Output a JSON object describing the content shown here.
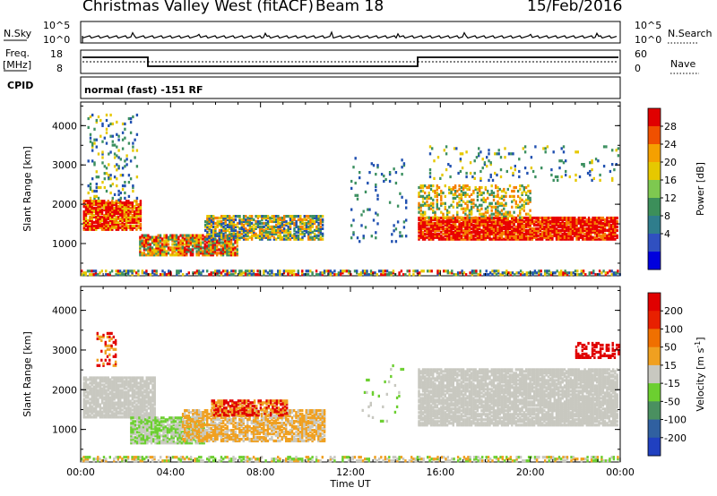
{
  "header": {
    "station": "Christmas Valley West (fitACF)",
    "beam": "Beam 18",
    "date": "15/Feb/2016"
  },
  "top_panels": {
    "nsky_label": "N.Sky",
    "nsearch_label": "N.Search",
    "nsky_ticks": [
      "10^5",
      "10^0"
    ],
    "nsky_right_ticks": [
      "10^5",
      "10^0"
    ],
    "freq_label_1": "Freq.",
    "freq_label_2": "[MHz]",
    "freq_ticks": [
      "18",
      "8"
    ],
    "nave_label": "Nave",
    "nave_ticks": [
      "60",
      "0"
    ],
    "cpid_label": "CPID",
    "cpid_text": "normal (fast) -151 RF"
  },
  "chart_data": [
    {
      "type": "heatmap",
      "name": "power",
      "ylabel": "Slant Range [km]",
      "xlabel": "",
      "yticks": [
        "4000",
        "3000",
        "2000",
        "1000"
      ],
      "ylim": [
        180,
        4600
      ],
      "colorbar_label": "Power [dB]",
      "colorbar_ticks": [
        "28",
        "24",
        "20",
        "16",
        "12",
        "8",
        "4"
      ],
      "colorbar_colors": [
        "#0000dd",
        "#3050c0",
        "#2f7d8c",
        "#3c8f5a",
        "#7ec850",
        "#e6c800",
        "#f5a000",
        "#f05000",
        "#e00000"
      ]
    },
    {
      "type": "heatmap",
      "name": "velocity",
      "ylabel": "Slant Range [km]",
      "xlabel": "Time UT",
      "yticks": [
        "4000",
        "3000",
        "2000",
        "1000"
      ],
      "ylim": [
        180,
        4600
      ],
      "xticks": [
        "00:00",
        "04:00",
        "08:00",
        "12:00",
        "16:00",
        "20:00",
        "00:00"
      ],
      "colorbar_label_main": "Velocity [m s",
      "colorbar_label_sup": "-1",
      "colorbar_label_end": "]",
      "colorbar_ticks": [
        "200",
        "100",
        "50",
        "15",
        "-15",
        "-50",
        "-100",
        "-200"
      ],
      "colorbar_colors": [
        "#2040c0",
        "#3060a0",
        "#4a9060",
        "#6ccf30",
        "#c8c8c0",
        "#f0a020",
        "#f07000",
        "#e82000",
        "#e00000"
      ]
    }
  ],
  "colors": {
    "power_red": "#e80000",
    "power_orange": "#f58000",
    "power_yellow": "#e6c800",
    "power_green": "#3c9060",
    "power_blue": "#2050b0",
    "vel_grey": "#c8c8c0",
    "vel_green": "#6ccf30",
    "vel_orange": "#f0a020",
    "vel_red": "#e00000",
    "vel_blue": "#2040c0"
  }
}
